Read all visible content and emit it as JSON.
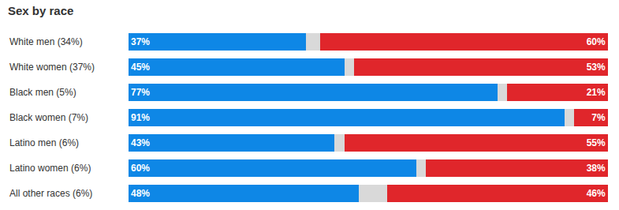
{
  "chart_data": {
    "type": "bar",
    "title": "Sex by race",
    "orientation": "horizontal",
    "stacked": true,
    "categories": [
      "White men (34%)",
      "White women (37%)",
      "Black men (5%)",
      "Black women (7%)",
      "Latino men (6%)",
      "Latino women (6%)",
      "All other races (6%)"
    ],
    "xlim": [
      0,
      100
    ],
    "tick_labels": "y",
    "series": [
      {
        "color": "#0e87e6",
        "values": [
          37,
          45,
          77,
          91,
          43,
          60,
          48
        ],
        "value_labels": [
          "37%",
          "45%",
          "77%",
          "91%",
          "43%",
          "60%",
          "48%"
        ],
        "data_labels": true
      },
      {
        "color": "#d9d9d9",
        "values": [
          3,
          2,
          2,
          2,
          2,
          2,
          6
        ],
        "data_labels": false
      },
      {
        "color": "#e0262b",
        "values": [
          60,
          53,
          21,
          7,
          55,
          38,
          46
        ],
        "value_labels": [
          "60%",
          "53%",
          "21%",
          "7%",
          "55%",
          "38%",
          "46%"
        ],
        "data_labels": true
      }
    ]
  }
}
